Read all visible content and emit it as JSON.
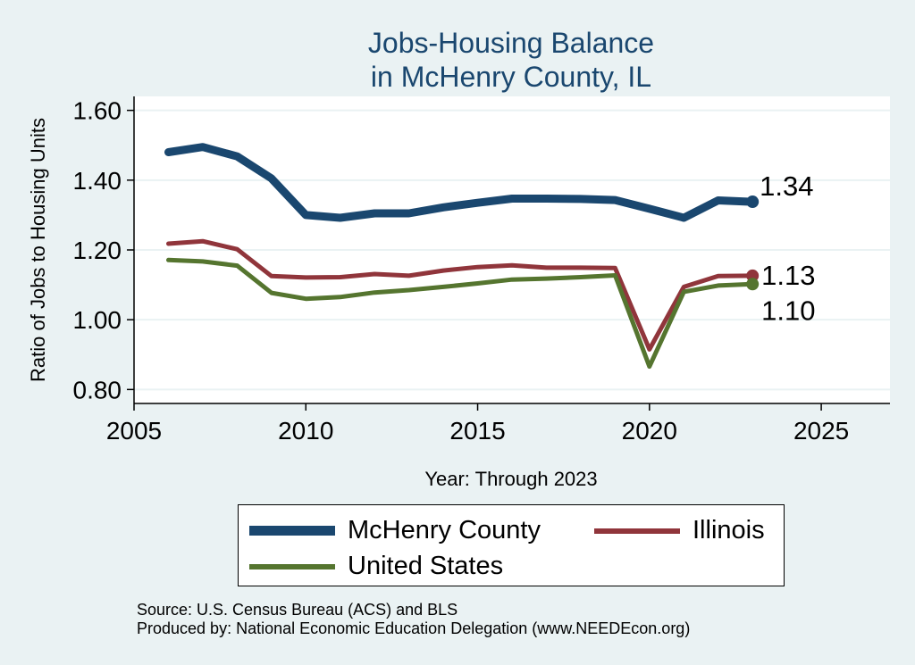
{
  "colors": {
    "background": "#eaf2f3",
    "plot_background": "#ffffff",
    "title": "#1a476f",
    "mchenry": "#1a476f",
    "illinois": "#90353b",
    "united_states": "#55752f",
    "grid": "#eaf2f3"
  },
  "chart_data": {
    "type": "line",
    "title": [
      "Jobs-Housing Balance",
      "in McHenry County, IL"
    ],
    "xlabel": "Year: Through 2023",
    "ylabel": "Ratio of Jobs to Housing Units",
    "xlim": [
      2005,
      2027
    ],
    "ylim": [
      0.76,
      1.64
    ],
    "xticks": [
      "2005",
      "2010",
      "2015",
      "2020",
      "2025"
    ],
    "yticks": [
      "0.80",
      "1.00",
      "1.20",
      "1.40",
      "1.60"
    ],
    "grid": true,
    "legend_position": "bottom",
    "x": [
      2006,
      2007,
      2008,
      2009,
      2010,
      2011,
      2012,
      2013,
      2014,
      2015,
      2016,
      2017,
      2018,
      2019,
      2020,
      2021,
      2022,
      2023
    ],
    "series": [
      {
        "name": "McHenry County",
        "color": "#1a476f",
        "values": [
          1.48,
          1.495,
          1.468,
          1.405,
          1.3,
          1.292,
          1.305,
          1.305,
          1.322,
          1.335,
          1.347,
          1.347,
          1.346,
          1.343,
          1.318,
          1.292,
          1.342,
          1.338
        ],
        "end_label": "1.34"
      },
      {
        "name": "Illinois",
        "color": "#90353b",
        "values": [
          1.218,
          1.225,
          1.202,
          1.125,
          1.121,
          1.122,
          1.131,
          1.126,
          1.141,
          1.151,
          1.156,
          1.149,
          1.149,
          1.148,
          0.915,
          1.094,
          1.125,
          1.126
        ],
        "end_label": "1.13"
      },
      {
        "name": "United States",
        "color": "#55752f",
        "values": [
          1.171,
          1.167,
          1.155,
          1.077,
          1.06,
          1.065,
          1.078,
          1.085,
          1.094,
          1.104,
          1.115,
          1.118,
          1.122,
          1.127,
          0.866,
          1.08,
          1.098,
          1.102
        ],
        "end_label": "1.10"
      }
    ]
  },
  "legend": {
    "items": [
      {
        "label": "McHenry County",
        "color": "#1a476f"
      },
      {
        "label": "Illinois",
        "color": "#90353b"
      },
      {
        "label": "United States",
        "color": "#55752f"
      }
    ]
  },
  "notes": {
    "source": "Source: U.S. Census Bureau (ACS) and BLS",
    "produced_by": "Produced by: National Economic Education Delegation (www.NEEDEcon.org)"
  }
}
